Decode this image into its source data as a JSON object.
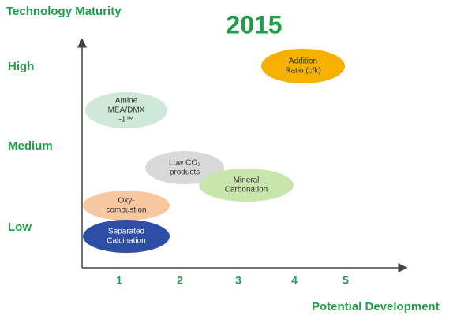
{
  "title": "2015",
  "y_axis": {
    "label": "Technology Maturity",
    "levels": [
      "High",
      "Medium",
      "Low"
    ]
  },
  "x_axis": {
    "label": "Potential Development",
    "ticks": [
      "1",
      "2",
      "3",
      "4",
      "5"
    ]
  },
  "nodes": [
    {
      "lines": [
        "Addition",
        "Ratio (c/k)"
      ]
    },
    {
      "lines": [
        "Amine",
        "MEA/DMX",
        "-1™"
      ]
    },
    {
      "lines": [
        "Low CO₂",
        "products"
      ]
    },
    {
      "lines": [
        "Mineral",
        "Carbonation"
      ]
    },
    {
      "lines": [
        "Oxy-",
        "combustion"
      ]
    },
    {
      "lines": [
        "Separated",
        "Calcination"
      ]
    }
  ]
}
